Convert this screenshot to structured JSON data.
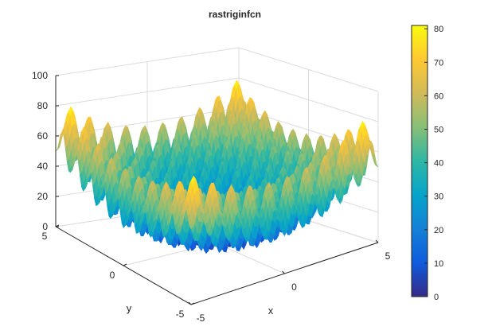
{
  "chart_data": {
    "type": "surface",
    "title": "rastriginfcn",
    "function": "z = 20 + x^2 + y^2 - 10*(cos(2*pi*x) + cos(2*pi*y))",
    "x": {
      "label": "x",
      "lim": [
        -5,
        5
      ],
      "ticks": [
        -5,
        0,
        5
      ],
      "tick_labels": [
        "-5",
        "0",
        "5"
      ]
    },
    "y": {
      "label": "y",
      "lim": [
        -5,
        5
      ],
      "ticks": [
        -5,
        0,
        5
      ],
      "tick_labels": [
        "-5",
        "0",
        "5"
      ]
    },
    "z": {
      "lim": [
        0,
        100
      ],
      "ticks": [
        0,
        20,
        40,
        60,
        80,
        100
      ],
      "tick_labels": [
        "0",
        "20",
        "40",
        "60",
        "80",
        "100"
      ]
    },
    "grid": "on",
    "colormap": "parula",
    "colormap_stops": [
      "#352a87",
      "#0f5cdd",
      "#1481d6",
      "#06a4ca",
      "#2eb7a4",
      "#87bf77",
      "#d1bb59",
      "#fec832",
      "#f9fb0e"
    ],
    "colorbar": {
      "placement": "right",
      "range": [
        0,
        81
      ],
      "ticks": [
        0,
        10,
        20,
        30,
        40,
        50,
        60,
        70,
        80
      ],
      "tick_labels": [
        "0",
        "10",
        "20",
        "30",
        "40",
        "50",
        "60",
        "70",
        "80"
      ]
    }
  }
}
